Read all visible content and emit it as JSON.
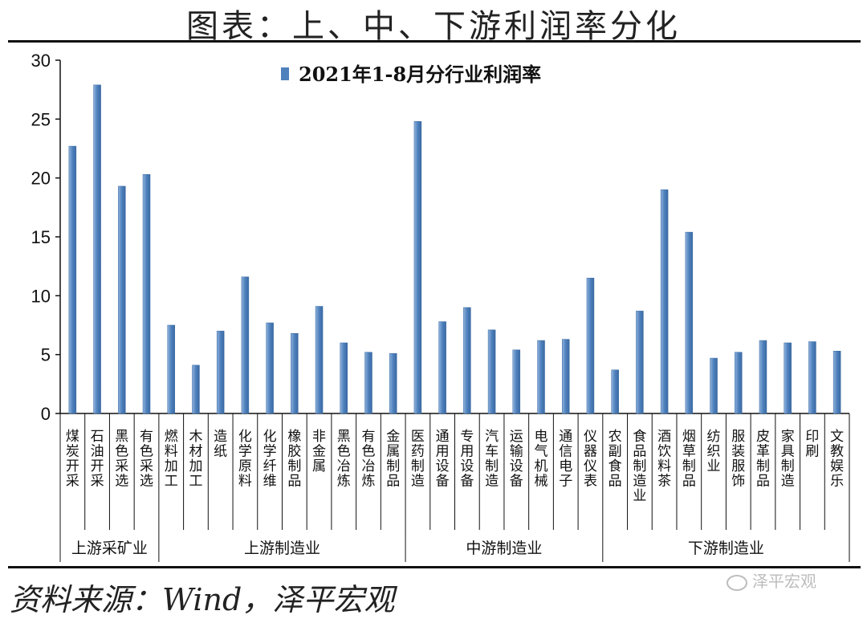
{
  "header": {
    "title": "图表：上、中、下游利润率分化"
  },
  "footer": {
    "source": "资料来源：Wind，泽平宏观",
    "watermark": "泽平宏观"
  },
  "chart_data": {
    "type": "bar",
    "title": "2021年1-8月分行业利润率",
    "legend": {
      "entries": [
        "2021年1-8月分行业利润率"
      ],
      "placement": "top-center"
    },
    "ylim": [
      0,
      30
    ],
    "yticks": [
      0,
      5,
      10,
      15,
      20,
      25,
      30
    ],
    "grid": false,
    "bar_color": "#4F81BD",
    "categories": [
      "煤炭开采",
      "石油开采",
      "黑色采选",
      "有色采选",
      "燃料加工",
      "木材加工",
      "造纸",
      "化学原料",
      "化学纤维",
      "橡胶制品",
      "非金属",
      "黑色冶炼",
      "有色冶炼",
      "金属制品",
      "医药制造",
      "通用设备",
      "专用设备",
      "汽车制造",
      "运输设备",
      "电气机械",
      "通信电子",
      "仪器仪表",
      "农副食品",
      "食品制造业",
      "酒饮料茶",
      "烟草制品",
      "纺织业",
      "服装服饰",
      "皮革制品",
      "家具制造",
      "印刷",
      "文教娱乐"
    ],
    "values": [
      22.7,
      27.9,
      19.3,
      20.3,
      7.5,
      4.1,
      7.0,
      11.6,
      7.7,
      6.8,
      9.1,
      6.0,
      5.2,
      5.1,
      24.8,
      7.8,
      9.0,
      7.1,
      5.4,
      6.2,
      6.3,
      11.5,
      3.7,
      8.7,
      19.0,
      15.4,
      4.7,
      5.2,
      6.2,
      6.0,
      6.1,
      5.3
    ],
    "groups": [
      {
        "label": "上游采矿业",
        "count": 4
      },
      {
        "label": "上游制造业",
        "count": 10
      },
      {
        "label": "中游制造业",
        "count": 8
      },
      {
        "label": "下游制造业",
        "count": 10
      }
    ]
  }
}
